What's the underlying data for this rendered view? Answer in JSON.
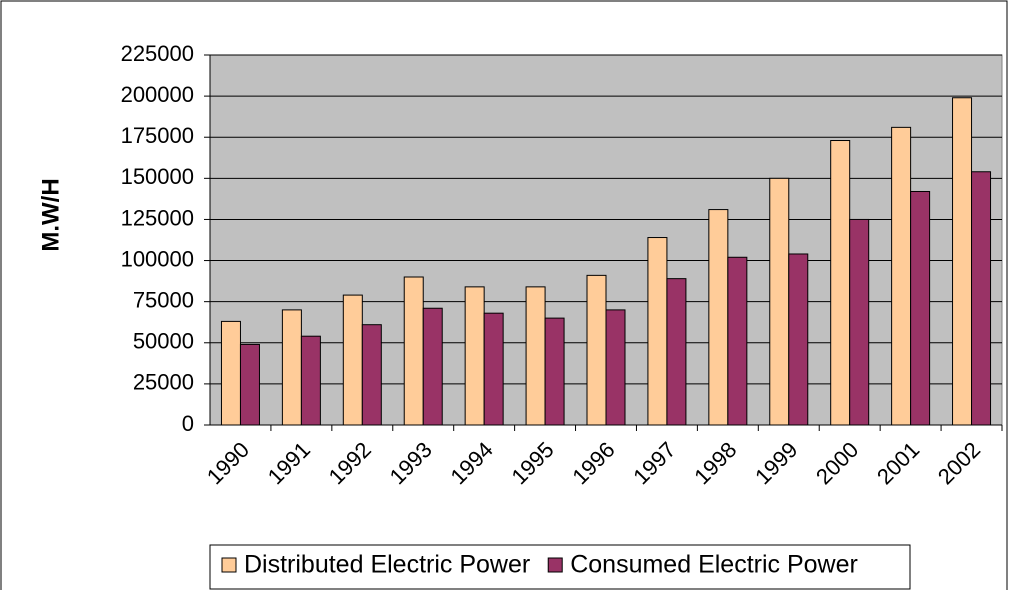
{
  "chart_data": {
    "type": "bar",
    "y_label": "M.W/H",
    "categories": [
      "1990",
      "1991",
      "1992",
      "1993",
      "1994",
      "1995",
      "1996",
      "1997",
      "1998",
      "1999",
      "2000",
      "2001",
      "2002"
    ],
    "series": [
      {
        "name": "Distributed Electric Power",
        "color": "#ffcc99",
        "values": [
          63000,
          70000,
          79000,
          90000,
          84000,
          84000,
          91000,
          114000,
          131000,
          150000,
          173000,
          181000,
          199000
        ]
      },
      {
        "name": "Consumed Electric Power",
        "color": "#993366",
        "values": [
          49000,
          54000,
          61000,
          71000,
          68000,
          65000,
          70000,
          89000,
          102000,
          104000,
          125000,
          142000,
          154000
        ]
      }
    ],
    "ylim": [
      0,
      225000
    ],
    "yticks": [
      0,
      25000,
      50000,
      75000,
      100000,
      125000,
      150000,
      175000,
      200000,
      225000
    ],
    "grid": true,
    "legend": "bottom"
  }
}
